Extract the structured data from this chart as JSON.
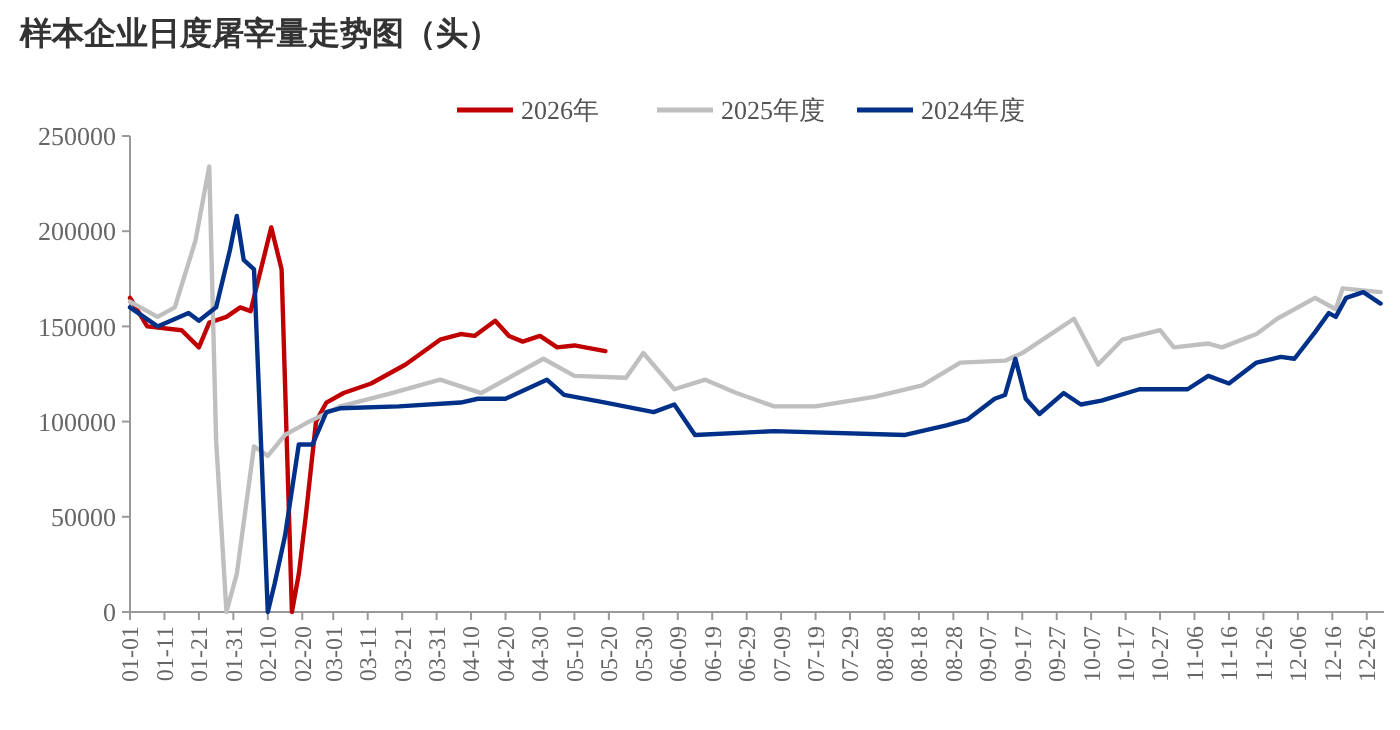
{
  "chart_data": {
    "type": "line",
    "title": "样本企业日度屠宰量走势图（头）",
    "legend": "top",
    "grid": false,
    "marker": "none",
    "line_style": "solid",
    "xlim": [
      "--01-01",
      "--12-31"
    ],
    "ylim": [
      0,
      250000
    ],
    "yticks": [
      0,
      50000,
      100000,
      150000,
      200000,
      250000
    ],
    "xticks": [
      {
        "value": "--01-01",
        "label": "01-01"
      },
      {
        "value": "--01-11",
        "label": "01-11"
      },
      {
        "value": "--01-21",
        "label": "01-21"
      },
      {
        "value": "--01-31",
        "label": "01-31"
      },
      {
        "value": "--02-10",
        "label": "02-10"
      },
      {
        "value": "--02-20",
        "label": "02-20"
      },
      {
        "value": "--03-01",
        "label": "03-01"
      },
      {
        "value": "--03-11",
        "label": "03-11"
      },
      {
        "value": "--03-21",
        "label": "03-21"
      },
      {
        "value": "--03-31",
        "label": "03-31"
      },
      {
        "value": "--04-10",
        "label": "04-10"
      },
      {
        "value": "--04-20",
        "label": "04-20"
      },
      {
        "value": "--04-30",
        "label": "04-30"
      },
      {
        "value": "--05-10",
        "label": "05-10"
      },
      {
        "value": "--05-20",
        "label": "05-20"
      },
      {
        "value": "--05-30",
        "label": "05-30"
      },
      {
        "value": "--06-09",
        "label": "06-09"
      },
      {
        "value": "--06-19",
        "label": "06-19"
      },
      {
        "value": "--06-29",
        "label": "06-29"
      },
      {
        "value": "--07-09",
        "label": "07-09"
      },
      {
        "value": "--07-19",
        "label": "07-19"
      },
      {
        "value": "--07-29",
        "label": "07-29"
      },
      {
        "value": "--08-08",
        "label": "08-08"
      },
      {
        "value": "--08-18",
        "label": "08-18"
      },
      {
        "value": "--08-28",
        "label": "08-28"
      },
      {
        "value": "--09-07",
        "label": "09-07"
      },
      {
        "value": "--09-17",
        "label": "09-17"
      },
      {
        "value": "--09-27",
        "label": "09-27"
      },
      {
        "value": "--10-07",
        "label": "10-07"
      },
      {
        "value": "--10-17",
        "label": "10-17"
      },
      {
        "value": "--10-27",
        "label": "10-27"
      },
      {
        "value": "--11-06",
        "label": "11-06"
      },
      {
        "value": "--11-16",
        "label": "11-16"
      },
      {
        "value": "--11-26",
        "label": "11-26"
      },
      {
        "value": "--12-06",
        "label": "12-06"
      },
      {
        "value": "--12-16",
        "label": "12-16"
      },
      {
        "value": "--12-26",
        "label": "12-26"
      }
    ],
    "series": [
      {
        "name": "2026年",
        "color": "#c00000",
        "x": [
          "--01-01",
          "--01-06",
          "--01-16",
          "--01-21",
          "--01-24",
          "--01-29",
          "--02-02",
          "--02-05",
          "--02-11",
          "--02-14",
          "--02-17",
          "--02-19",
          "--02-21",
          "--02-24",
          "--02-27",
          "--03-04",
          "--03-12",
          "--03-22",
          "--04-01",
          "--04-07",
          "--04-11",
          "--04-17",
          "--04-21",
          "--04-25",
          "--04-30",
          "--05-05",
          "--05-10",
          "--05-19"
        ],
        "values": [
          165000,
          150000,
          148000,
          139000,
          152000,
          155000,
          160000,
          158000,
          202000,
          180000,
          0,
          20000,
          50000,
          100000,
          110000,
          115000,
          120000,
          130000,
          143000,
          146000,
          145000,
          153000,
          145000,
          142000,
          145000,
          139000,
          140000,
          137000
        ]
      },
      {
        "name": "2025年度",
        "color": "#bfbfbf",
        "x": [
          "--01-01",
          "--01-09",
          "--01-14",
          "--01-20",
          "--01-24",
          "--01-26",
          "--01-29",
          "--02-01",
          "--02-06",
          "--02-10",
          "--02-15",
          "--02-22",
          "--03-03",
          "--03-18",
          "--04-01",
          "--04-13",
          "--05-01",
          "--05-10",
          "--05-25",
          "--05-30",
          "--06-08",
          "--06-17",
          "--06-26",
          "--07-07",
          "--07-19",
          "--08-05",
          "--08-19",
          "--08-30",
          "--09-12",
          "--09-17",
          "--10-02",
          "--10-09",
          "--10-16",
          "--10-27",
          "--10-31",
          "--11-10",
          "--11-14",
          "--11-24",
          "--11-30",
          "--12-11",
          "--12-17",
          "--12-19",
          "--12-30"
        ],
        "values": [
          163000,
          155000,
          160000,
          195000,
          234000,
          90000,
          0,
          20000,
          87000,
          82000,
          93000,
          100000,
          108000,
          115000,
          122000,
          115000,
          133000,
          124000,
          123000,
          136000,
          117000,
          122000,
          115000,
          108000,
          108000,
          113000,
          119000,
          131000,
          132000,
          136000,
          154000,
          130000,
          143000,
          148000,
          139000,
          141000,
          139000,
          146000,
          154000,
          165000,
          159000,
          170000,
          168000
        ]
      },
      {
        "name": "2024年度",
        "color": "#003087",
        "x": [
          "--01-01",
          "--01-09",
          "--01-18",
          "--01-21",
          "--01-26",
          "--01-30",
          "--02-01",
          "--02-03",
          "--02-06",
          "--02-10",
          "--02-12",
          "--02-15",
          "--02-19",
          "--02-23",
          "--02-27",
          "--03-03",
          "--03-20",
          "--04-07",
          "--04-12",
          "--04-20",
          "--05-02",
          "--05-07",
          "--05-19",
          "--06-02",
          "--06-08",
          "--06-14",
          "--07-07",
          "--08-14",
          "--08-26",
          "--09-01",
          "--09-09",
          "--09-12",
          "--09-15",
          "--09-18",
          "--09-22",
          "--09-29",
          "--10-04",
          "--10-10",
          "--10-21",
          "--11-04",
          "--11-10",
          "--11-16",
          "--11-24",
          "--12-01",
          "--12-05",
          "--12-11",
          "--12-15",
          "--12-17",
          "--12-20",
          "--12-25",
          "--12-30"
        ],
        "values": [
          160000,
          150000,
          157000,
          153000,
          160000,
          190000,
          208000,
          185000,
          180000,
          0,
          15000,
          40000,
          88000,
          88000,
          105000,
          107000,
          108000,
          110000,
          112000,
          112000,
          122000,
          114000,
          110000,
          105000,
          109000,
          93000,
          95000,
          93000,
          98000,
          101000,
          112000,
          114000,
          133000,
          112000,
          104000,
          115000,
          109000,
          111000,
          117000,
          117000,
          124000,
          120000,
          131000,
          134000,
          133000,
          147000,
          157000,
          155000,
          165000,
          168000,
          162000
        ]
      }
    ]
  }
}
